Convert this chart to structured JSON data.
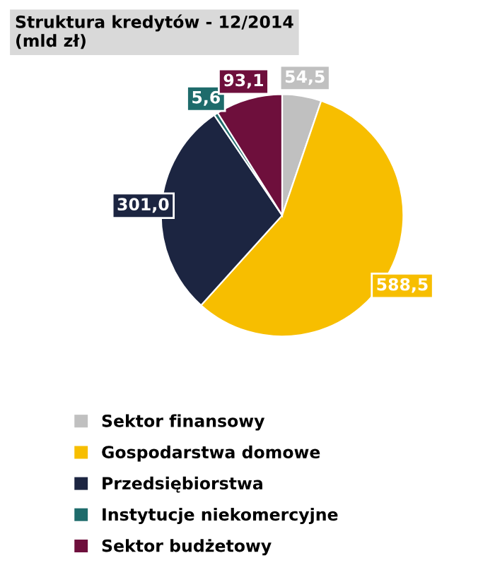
{
  "chart_data": {
    "type": "pie",
    "title": "Struktura kredytów - 12/2014\n(mld zł)",
    "categories": [
      "Sektor finansowy",
      "Gospodarstwa domowe",
      "Przedsiębiorstwa",
      "Instytucje niekomercyjne",
      "Sektor budżetowy"
    ],
    "values": [
      54.5,
      588.5,
      301.0,
      5.6,
      93.1
    ],
    "value_labels": [
      "54,5",
      "588,5",
      "301,0",
      "5,6",
      "93,1"
    ],
    "colors": [
      "#c0c0c0",
      "#f7be00",
      "#1c2541",
      "#1e6b6b",
      "#6e0f3c"
    ],
    "legend": "bottom"
  }
}
